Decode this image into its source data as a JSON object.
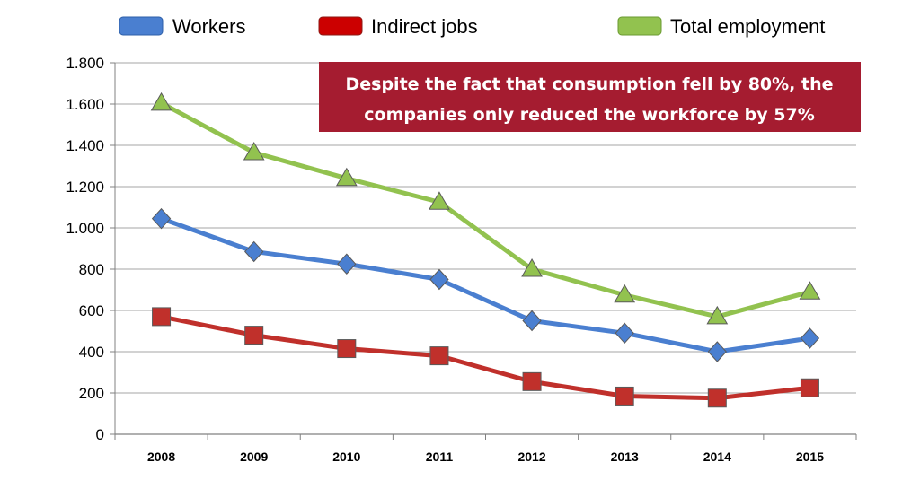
{
  "chart_data": {
    "type": "line",
    "categories": [
      "2008",
      "2009",
      "2010",
      "2011",
      "2012",
      "2013",
      "2014",
      "2015"
    ],
    "ylim": [
      0,
      1800
    ],
    "yticks": [
      0,
      200,
      400,
      600,
      800,
      1000,
      1200,
      1400,
      1600,
      1800
    ],
    "ytick_labels": [
      "0",
      "200",
      "400",
      "600",
      "800",
      "1.000",
      "1.200",
      "1.400",
      "1.600",
      "1.800"
    ],
    "grid": true,
    "legend_position": "top",
    "series": [
      {
        "name": "Workers",
        "color": "#4a7fd0",
        "marker": "diamond",
        "values": [
          1045,
          885,
          825,
          750,
          550,
          490,
          400,
          465
        ]
      },
      {
        "name": "Indirect jobs",
        "color": "#c0302b",
        "marker": "square",
        "values": [
          570,
          480,
          415,
          380,
          255,
          185,
          175,
          225
        ]
      },
      {
        "name": "Total employment",
        "color": "#92c24f",
        "marker": "triangle",
        "values": [
          1605,
          1365,
          1240,
          1125,
          800,
          675,
          570,
          690
        ]
      }
    ],
    "annotation": {
      "lines": [
        "Despite the fact that consumption fell by 80%, the",
        "companies only reduced the workforce by 57%"
      ],
      "background": "#a51c30"
    }
  }
}
